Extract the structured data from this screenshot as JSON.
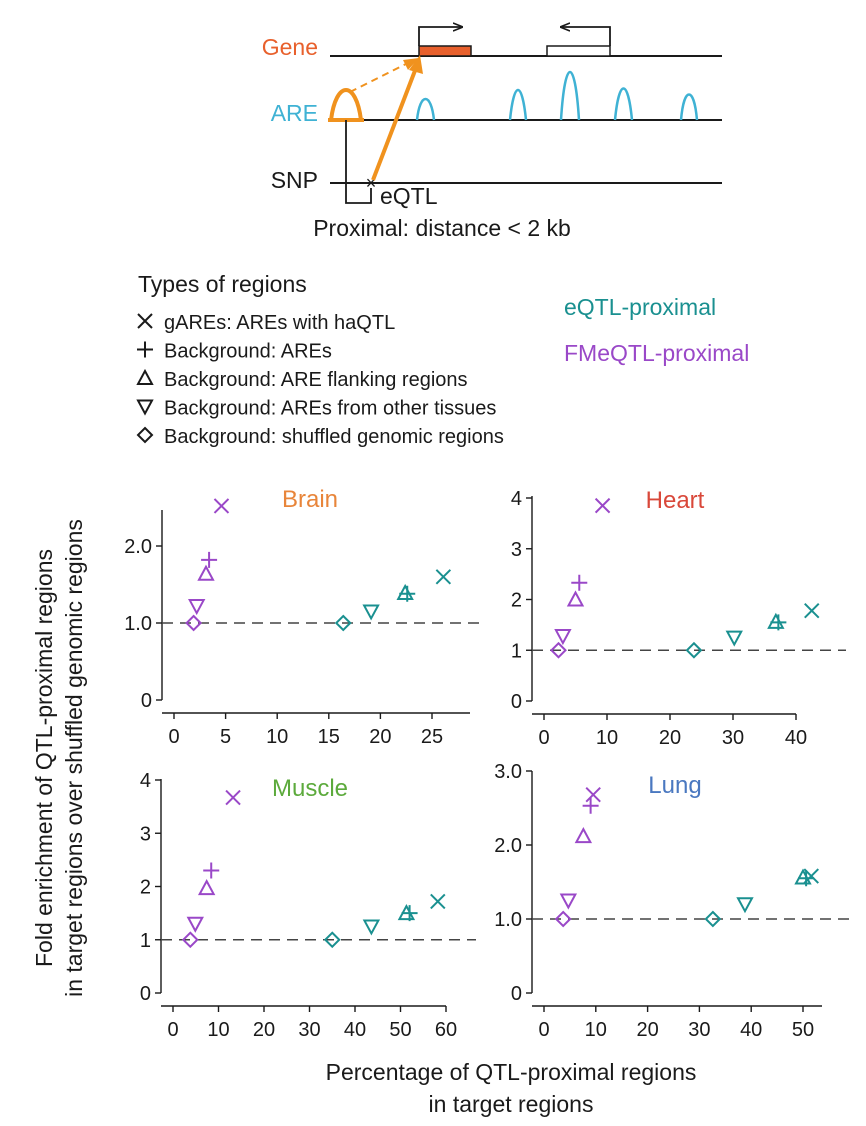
{
  "schematic": {
    "gene_label": "Gene",
    "are_label": "ARE",
    "snp_label": "SNP",
    "eqtl_label": "eQTL",
    "proximal_caption": "Proximal: distance < 2 kb"
  },
  "legend": {
    "title": "Types of regions",
    "items": [
      {
        "marker": "x",
        "label": "gAREs: AREs with haQTL"
      },
      {
        "marker": "plus",
        "label": "Background: AREs"
      },
      {
        "marker": "triangle-up",
        "label": "Background: ARE flanking regions"
      },
      {
        "marker": "triangle-down",
        "label": "Background: AREs from other tissues"
      },
      {
        "marker": "diamond",
        "label": "Background: shuffled genomic regions"
      }
    ],
    "groups": [
      {
        "name": "eQTL-proximal",
        "color": "#1a9090"
      },
      {
        "name": "FMeQTL-proximal",
        "color": "#9a48c8"
      }
    ]
  },
  "colors": {
    "gene": "#e8602c",
    "are": "#3fb2d4",
    "arrow": "#f0921e",
    "brain": "#e8853a",
    "heart": "#d9483a",
    "muscle": "#5caa3c",
    "lung": "#4a78c0"
  },
  "axis_titles": {
    "ylabel_line1": "Fold enrichment of QTL-proximal regions",
    "ylabel_line2": "in target regions over shuffled genomic regions",
    "xlabel_line1": "Percentage of QTL-proximal regions",
    "xlabel_line2": "in target regions"
  },
  "chart_data": [
    {
      "type": "scatter",
      "title": "Brain",
      "xlim": [
        0,
        27
      ],
      "ylim": [
        0,
        2.5
      ],
      "xticks": [
        0,
        5,
        10,
        15,
        20,
        25
      ],
      "xtick_labels": [
        "0",
        "5",
        "10",
        "15",
        "20",
        "25"
      ],
      "yticks": [
        0,
        1,
        2
      ],
      "ytick_labels": [
        "0",
        "1.0",
        "2.0"
      ],
      "reference_y": 1,
      "series": [
        {
          "name": "eQTL-proximal",
          "points": [
            {
              "marker": "x",
              "x": 26.1,
              "y": 1.6
            },
            {
              "marker": "plus",
              "x": 22.6,
              "y": 1.38
            },
            {
              "marker": "triangle-up",
              "x": 22.4,
              "y": 1.39
            },
            {
              "marker": "triangle-down",
              "x": 19.1,
              "y": 1.15
            },
            {
              "marker": "diamond",
              "x": 16.4,
              "y": 1.0
            }
          ]
        },
        {
          "name": "FMeQTL-proximal",
          "points": [
            {
              "marker": "x",
              "x": 4.6,
              "y": 2.52
            },
            {
              "marker": "plus",
              "x": 3.4,
              "y": 1.82
            },
            {
              "marker": "triangle-up",
              "x": 3.1,
              "y": 1.64
            },
            {
              "marker": "triangle-down",
              "x": 2.2,
              "y": 1.22
            },
            {
              "marker": "diamond",
              "x": 1.9,
              "y": 1.0
            }
          ]
        }
      ]
    },
    {
      "type": "scatter",
      "title": "Heart",
      "xlim": [
        0,
        45
      ],
      "ylim": [
        0,
        4
      ],
      "xticks": [
        0,
        10,
        20,
        30,
        40
      ],
      "xtick_labels": [
        "0",
        "10",
        "20",
        "30",
        "40"
      ],
      "yticks": [
        0,
        1,
        2,
        3,
        4
      ],
      "ytick_labels": [
        "0",
        "1",
        "2",
        "3",
        "4"
      ],
      "reference_y": 1,
      "series": [
        {
          "name": "eQTL-proximal",
          "points": [
            {
              "marker": "x",
              "x": 42.5,
              "y": 1.78
            },
            {
              "marker": "plus",
              "x": 37.2,
              "y": 1.55
            },
            {
              "marker": "triangle-up",
              "x": 36.8,
              "y": 1.56
            },
            {
              "marker": "triangle-down",
              "x": 30.2,
              "y": 1.25
            },
            {
              "marker": "diamond",
              "x": 23.8,
              "y": 1.0
            }
          ]
        },
        {
          "name": "FMeQTL-proximal",
          "points": [
            {
              "marker": "x",
              "x": 9.3,
              "y": 3.85
            },
            {
              "marker": "plus",
              "x": 5.6,
              "y": 2.33
            },
            {
              "marker": "triangle-up",
              "x": 5.0,
              "y": 2.0
            },
            {
              "marker": "triangle-down",
              "x": 3.0,
              "y": 1.28
            },
            {
              "marker": "diamond",
              "x": 2.3,
              "y": 1.0
            }
          ]
        }
      ]
    },
    {
      "type": "scatter",
      "title": "Muscle",
      "xlim": [
        0,
        60
      ],
      "ylim": [
        0,
        4
      ],
      "xticks": [
        0,
        10,
        20,
        30,
        40,
        50,
        60
      ],
      "xtick_labels": [
        "0",
        "10",
        "20",
        "30",
        "40",
        "50",
        "60"
      ],
      "yticks": [
        0,
        1,
        2,
        3,
        4
      ],
      "ytick_labels": [
        "0",
        "1",
        "2",
        "3",
        "4"
      ],
      "reference_y": 1,
      "series": [
        {
          "name": "eQTL-proximal",
          "points": [
            {
              "marker": "x",
              "x": 58.2,
              "y": 1.72
            },
            {
              "marker": "plus",
              "x": 52.0,
              "y": 1.5
            },
            {
              "marker": "triangle-up",
              "x": 51.3,
              "y": 1.5
            },
            {
              "marker": "triangle-down",
              "x": 43.6,
              "y": 1.25
            },
            {
              "marker": "diamond",
              "x": 35.0,
              "y": 1.0
            }
          ]
        },
        {
          "name": "FMeQTL-proximal",
          "points": [
            {
              "marker": "x",
              "x": 13.2,
              "y": 3.67
            },
            {
              "marker": "plus",
              "x": 8.4,
              "y": 2.3
            },
            {
              "marker": "triangle-up",
              "x": 7.4,
              "y": 1.97
            },
            {
              "marker": "triangle-down",
              "x": 4.9,
              "y": 1.3
            },
            {
              "marker": "diamond",
              "x": 3.8,
              "y": 1.0
            }
          ]
        }
      ]
    },
    {
      "type": "scatter",
      "title": "Lung",
      "xlim": [
        0,
        55
      ],
      "ylim": [
        0,
        3
      ],
      "xticks": [
        0,
        10,
        20,
        30,
        40,
        50
      ],
      "xtick_labels": [
        "0",
        "10",
        "20",
        "30",
        "40",
        "50"
      ],
      "yticks": [
        0,
        1,
        2,
        3
      ],
      "ytick_labels": [
        "0",
        "1.0",
        "2.0",
        "3.0"
      ],
      "reference_y": 1,
      "series": [
        {
          "name": "eQTL-proximal",
          "points": [
            {
              "marker": "x",
              "x": 51.6,
              "y": 1.58
            },
            {
              "marker": "plus",
              "x": 50.6,
              "y": 1.55
            },
            {
              "marker": "triangle-up",
              "x": 50.0,
              "y": 1.56
            },
            {
              "marker": "triangle-down",
              "x": 38.8,
              "y": 1.2
            },
            {
              "marker": "diamond",
              "x": 32.6,
              "y": 1.0
            }
          ]
        },
        {
          "name": "FMeQTL-proximal",
          "points": [
            {
              "marker": "x",
              "x": 9.5,
              "y": 2.68
            },
            {
              "marker": "plus",
              "x": 9.0,
              "y": 2.53
            },
            {
              "marker": "triangle-up",
              "x": 7.6,
              "y": 2.12
            },
            {
              "marker": "triangle-down",
              "x": 4.7,
              "y": 1.25
            },
            {
              "marker": "diamond",
              "x": 3.7,
              "y": 1.0
            }
          ]
        }
      ]
    }
  ]
}
